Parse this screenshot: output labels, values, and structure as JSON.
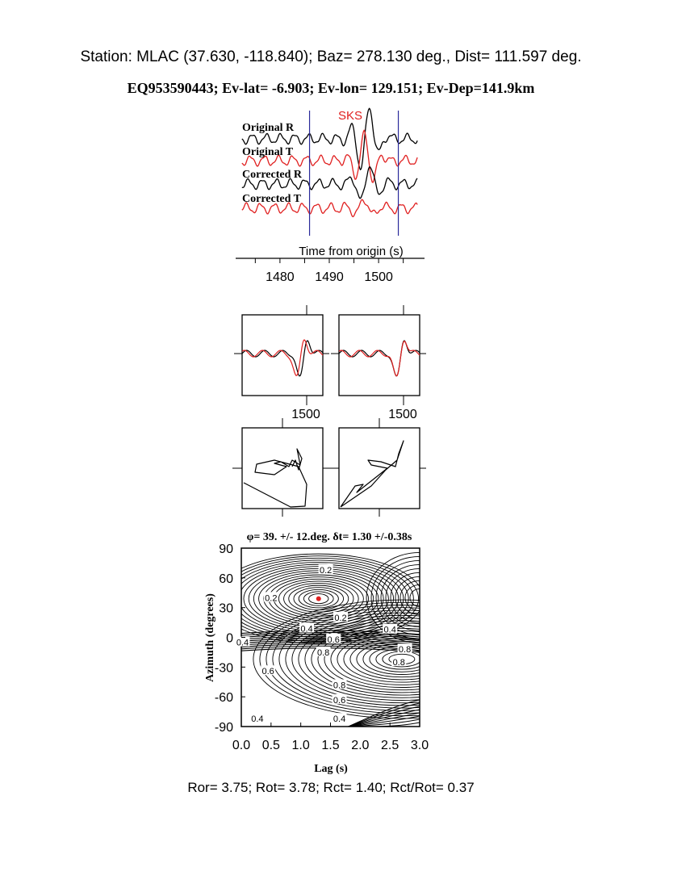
{
  "header": {
    "station_line": "Station: MLAC (37.630, -118.840); Baz=  278.130 deg., Dist=  111.597 deg.",
    "event_line": "EQ953590443; Ev-lat=  -6.903; Ev-lon= 129.151; Ev-Dep=141.9km"
  },
  "colors": {
    "black": "#000000",
    "red": "#e02020",
    "window_line": "#2a2a9a",
    "marker": "#e02020"
  },
  "chart_data": [
    {
      "id": "seismograms",
      "type": "line",
      "phase_label": "SKS",
      "trace_labels": [
        "Original R",
        "Original T",
        "Corrected R",
        "Corrected T"
      ],
      "trace_colors": [
        "black",
        "red",
        "black",
        "red"
      ],
      "xlabel": "Time from origin (s)",
      "x_ticks": [
        1480,
        1490,
        1500
      ],
      "xlim": [
        1472,
        1508
      ],
      "window_markers_s": [
        1486.0,
        1504.0
      ]
    },
    {
      "id": "particle_waveforms",
      "type": "line",
      "panels": [
        "before",
        "after"
      ],
      "x_ticks": [
        1500
      ]
    },
    {
      "id": "particle_motion",
      "type": "line",
      "panels": [
        "before",
        "after"
      ]
    },
    {
      "id": "energy_grid",
      "type": "heatmap",
      "title": "φ= 39. +/- 12.deg. δt= 1.30 +/-0.38s",
      "xlabel": "Lag (s)",
      "ylabel": "Azimuth (degrees)",
      "xlim": [
        0,
        3
      ],
      "ylim": [
        -90,
        90
      ],
      "x_ticks": [
        "0.0",
        "0.5",
        "1.0",
        "1.5",
        "2.0",
        "2.5",
        "3.0"
      ],
      "y_ticks": [
        "90",
        "60",
        "30",
        "0",
        "-30",
        "-60",
        "-90"
      ],
      "best_fit": {
        "lag_s": 1.3,
        "azimuth_deg": 39
      },
      "contour_labels": [
        {
          "text": "0.2",
          "x": 1.42,
          "y": 68
        },
        {
          "text": "0.2",
          "x": 0.5,
          "y": 40
        },
        {
          "text": "0.2",
          "x": 1.67,
          "y": 20
        },
        {
          "text": "0.4",
          "x": 1.1,
          "y": 9
        },
        {
          "text": "0.4",
          "x": 2.5,
          "y": 8
        },
        {
          "text": "0.6",
          "x": 1.55,
          "y": -2
        },
        {
          "text": "0.8",
          "x": 1.38,
          "y": -15
        },
        {
          "text": "0.6",
          "x": 0.45,
          "y": -34
        },
        {
          "text": "0.8",
          "x": 2.75,
          "y": -12
        },
        {
          "text": "0.8",
          "x": 2.65,
          "y": -25
        },
        {
          "text": "0.8",
          "x": 1.65,
          "y": -48
        },
        {
          "text": "0.6",
          "x": 1.65,
          "y": -63
        },
        {
          "text": "0.4",
          "x": 0.27,
          "y": -82
        },
        {
          "text": "0.4",
          "x": 1.65,
          "y": -82
        },
        {
          "text": "0.4",
          "x": 0.02,
          "y": -5
        }
      ]
    }
  ],
  "footer": {
    "stats_line": "Ror= 3.75; Rot= 3.78; Rct= 1.40; Rct/Rot= 0.37"
  }
}
